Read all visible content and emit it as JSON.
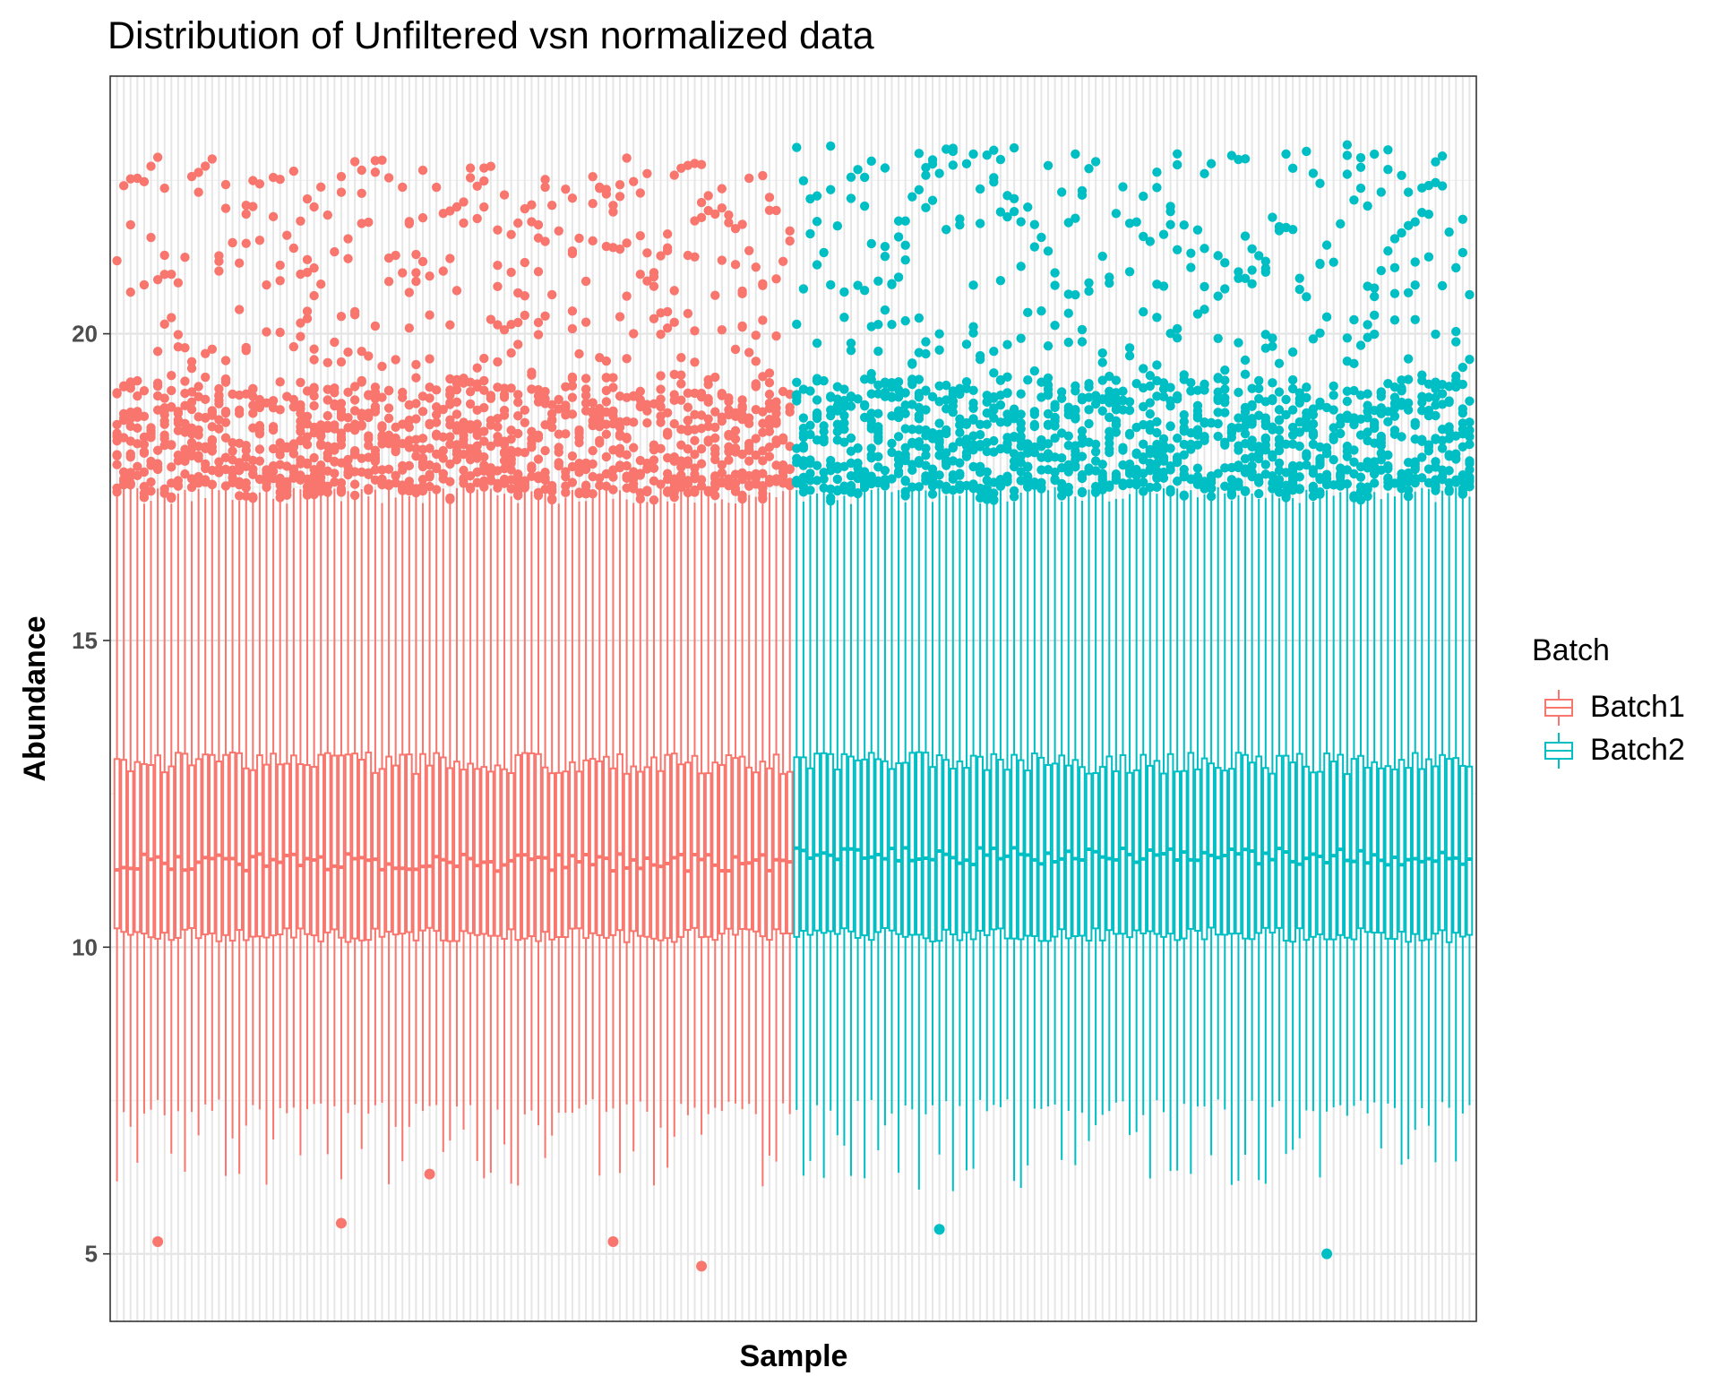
{
  "chart_data": {
    "type": "boxplot",
    "title": "Distribution of Unfiltered vsn normalized data",
    "xlabel": "Sample",
    "ylabel": "Abundance",
    "ylim": [
      3.9,
      24.2
    ],
    "y_ticks": [
      5,
      10,
      15,
      20
    ],
    "grid": true,
    "x_tick_labels_shown": false,
    "legend": {
      "title": "Batch",
      "position": "right",
      "entries": [
        {
          "name": "Batch1",
          "color": "#F8766D"
        },
        {
          "name": "Batch2",
          "color": "#00BFC4"
        }
      ]
    },
    "series": [
      {
        "name": "Batch1",
        "color": "#F8766D",
        "n_samples": 100,
        "typical": {
          "lower_whisker": 7.4,
          "q1": 10.2,
          "median": 11.4,
          "q3": 13.0,
          "upper_whisker": 17.3
        },
        "outliers_high_range": [
          16.8,
          23.2
        ],
        "outliers_low": [
          5.2,
          5.5,
          6.3,
          5.2,
          4.8
        ]
      },
      {
        "name": "Batch2",
        "color": "#00BFC4",
        "n_samples": 100,
        "typical": {
          "lower_whisker": 7.4,
          "q1": 10.2,
          "median": 11.5,
          "q3": 13.0,
          "upper_whisker": 17.3
        },
        "outliers_high_range": [
          16.8,
          23.4
        ],
        "outliers_low": [
          5.4,
          5.0
        ]
      }
    ]
  }
}
